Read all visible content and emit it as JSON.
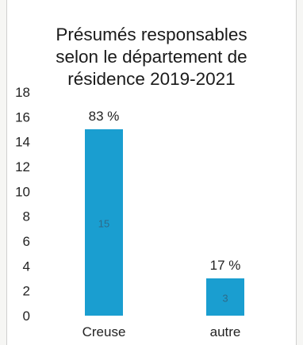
{
  "chart_data": {
    "type": "bar",
    "title_lines": [
      "Présumés responsables",
      "selon le département de",
      "résidence 2019-2021"
    ],
    "categories": [
      "Creuse",
      "autre"
    ],
    "values": [
      15,
      3
    ],
    "percent_labels": [
      "83 %",
      "17 %"
    ],
    "ylim": [
      0,
      18
    ],
    "yticks": [
      "0",
      "2",
      "4",
      "6",
      "8",
      "10",
      "12",
      "14",
      "16",
      "18"
    ],
    "xlabel": "",
    "ylabel": "",
    "grid": false,
    "legend": "none",
    "bar_color": "#1a9ed0"
  }
}
